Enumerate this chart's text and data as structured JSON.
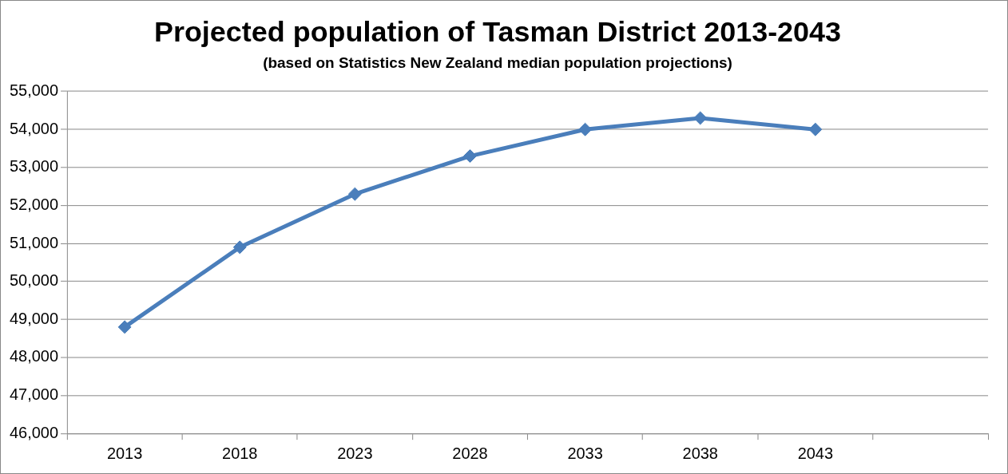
{
  "chart_data": {
    "type": "line",
    "title": "Projected population of Tasman District 2013-2043",
    "subtitle": "(based on Statistics New Zealand median population projections)",
    "categories": [
      "2013",
      "2018",
      "2023",
      "2028",
      "2033",
      "2038",
      "2043",
      null
    ],
    "series": [
      {
        "color": "#4a7ebb",
        "values": [
          48800,
          50900,
          52300,
          53300,
          54000,
          54300,
          54000,
          null
        ]
      }
    ],
    "ylim": [
      46000,
      55000
    ],
    "yticks": [
      {
        "value": 46000,
        "label": "46,000"
      },
      {
        "value": 47000,
        "label": "47,000"
      },
      {
        "value": 48000,
        "label": "48,000"
      },
      {
        "value": 49000,
        "label": "49,000"
      },
      {
        "value": 50000,
        "label": "50,000"
      },
      {
        "value": 51000,
        "label": "51,000"
      },
      {
        "value": 52000,
        "label": "52,000"
      },
      {
        "value": 53000,
        "label": "53,000"
      },
      {
        "value": 54000,
        "label": "54,000"
      },
      {
        "value": 55000,
        "label": "55,000"
      }
    ],
    "grid": "y",
    "marker": "diamond",
    "line_style": "solid"
  }
}
